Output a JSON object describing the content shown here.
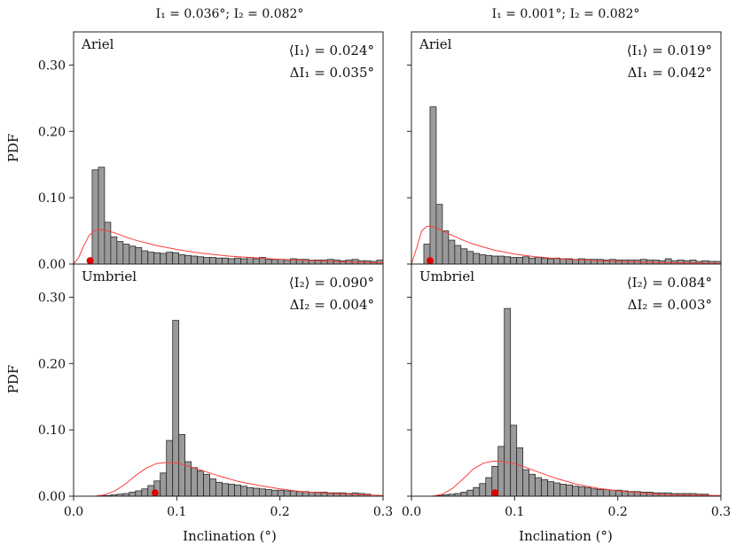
{
  "column_titles": [
    "I₁ = 0.036°; I₂ = 0.082°",
    "I₁ = 0.001°; I₂ = 0.082°"
  ],
  "ylabel": "PDF",
  "xlabel": "Inclination (°)",
  "colors": {
    "bar_fill": "#9a9a9a",
    "bar_edge": "#2a2a2a",
    "fit_curve": "#ff3b3b",
    "marker": "#e00000"
  },
  "chart_data": [
    {
      "type": "bar",
      "panel": "top-left",
      "label": "Ariel",
      "annotation_lines": [
        "⟨I₁⟩ = 0.024°",
        "ΔI₁ = 0.035°"
      ],
      "xlim": [
        0,
        0.3
      ],
      "ylim": [
        0,
        0.35
      ],
      "xticks": [],
      "yticks": [
        "0.00",
        "0.10",
        "0.20",
        "0.30"
      ],
      "bin_start": 0.018,
      "bin_width": 0.006,
      "values": [
        0.142,
        0.146,
        0.063,
        0.041,
        0.034,
        0.03,
        0.027,
        0.025,
        0.02,
        0.018,
        0.017,
        0.016,
        0.018,
        0.017,
        0.014,
        0.013,
        0.012,
        0.011,
        0.01,
        0.01,
        0.009,
        0.009,
        0.008,
        0.009,
        0.008,
        0.01,
        0.008,
        0.01,
        0.007,
        0.007,
        0.007,
        0.006,
        0.008,
        0.007,
        0.007,
        0.006,
        0.006,
        0.006,
        0.007,
        0.006,
        0.005,
        0.006,
        0.007,
        0.005,
        0.005,
        0.004,
        0.006,
        0.005
      ],
      "fit_curve": {
        "x": [
          0,
          0.005,
          0.01,
          0.015,
          0.02,
          0.025,
          0.03,
          0.04,
          0.05,
          0.06,
          0.08,
          0.1,
          0.12,
          0.15,
          0.2,
          0.25,
          0.3
        ],
        "y": [
          0,
          0.01,
          0.028,
          0.043,
          0.05,
          0.052,
          0.051,
          0.047,
          0.041,
          0.036,
          0.028,
          0.022,
          0.017,
          0.012,
          0.007,
          0.004,
          0.002
        ]
      },
      "marker": {
        "x": 0.016,
        "y": 0.005
      }
    },
    {
      "type": "bar",
      "panel": "top-right",
      "label": "Ariel",
      "annotation_lines": [
        "⟨I₁⟩ = 0.019°",
        "ΔI₁ = 0.042°"
      ],
      "xlim": [
        0,
        0.3
      ],
      "ylim": [
        0,
        0.35
      ],
      "xticks": [],
      "yticks": [],
      "bin_start": 0.012,
      "bin_width": 0.006,
      "values": [
        0.03,
        0.237,
        0.09,
        0.05,
        0.036,
        0.028,
        0.023,
        0.019,
        0.016,
        0.014,
        0.013,
        0.012,
        0.012,
        0.011,
        0.01,
        0.01,
        0.011,
        0.009,
        0.01,
        0.009,
        0.008,
        0.009,
        0.008,
        0.008,
        0.007,
        0.008,
        0.007,
        0.007,
        0.007,
        0.006,
        0.007,
        0.006,
        0.006,
        0.006,
        0.006,
        0.007,
        0.006,
        0.006,
        0.005,
        0.008,
        0.005,
        0.006,
        0.005,
        0.006,
        0.004,
        0.005,
        0.004,
        0.004
      ],
      "fit_curve": {
        "x": [
          0,
          0.005,
          0.01,
          0.015,
          0.02,
          0.025,
          0.03,
          0.04,
          0.05,
          0.06,
          0.08,
          0.1,
          0.12,
          0.15,
          0.2,
          0.25,
          0.3
        ],
        "y": [
          0,
          0.024,
          0.05,
          0.057,
          0.057,
          0.054,
          0.05,
          0.043,
          0.036,
          0.03,
          0.021,
          0.015,
          0.011,
          0.007,
          0.004,
          0.002,
          0.001
        ]
      },
      "marker": {
        "x": 0.018,
        "y": 0.005
      }
    },
    {
      "type": "bar",
      "panel": "bottom-left",
      "label": "Umbriel",
      "annotation_lines": [
        "⟨I₂⟩ = 0.090°",
        "ΔI₂ = 0.004°"
      ],
      "xlim": [
        0,
        0.3
      ],
      "ylim": [
        0,
        0.35
      ],
      "xticks": [
        "0.0",
        "0.1",
        "0.2",
        "0.3"
      ],
      "yticks": [
        "0.00",
        "0.10",
        "0.20",
        "0.30"
      ],
      "bin_start": 0.024,
      "bin_width": 0.006,
      "values": [
        0.001,
        0.001,
        0.002,
        0.003,
        0.004,
        0.006,
        0.008,
        0.011,
        0.016,
        0.023,
        0.035,
        0.084,
        0.265,
        0.093,
        0.052,
        0.043,
        0.038,
        0.033,
        0.026,
        0.021,
        0.019,
        0.018,
        0.017,
        0.015,
        0.013,
        0.012,
        0.011,
        0.01,
        0.009,
        0.009,
        0.008,
        0.008,
        0.007,
        0.007,
        0.006,
        0.006,
        0.006,
        0.005,
        0.005,
        0.005,
        0.004,
        0.005,
        0.004,
        0.003
      ],
      "fit_curve": {
        "x": [
          0.02,
          0.03,
          0.04,
          0.05,
          0.06,
          0.07,
          0.08,
          0.09,
          0.1,
          0.11,
          0.12,
          0.14,
          0.16,
          0.18,
          0.2,
          0.22,
          0.25,
          0.3
        ],
        "y": [
          0,
          0.002,
          0.008,
          0.018,
          0.031,
          0.042,
          0.049,
          0.051,
          0.05,
          0.046,
          0.041,
          0.031,
          0.022,
          0.016,
          0.011,
          0.007,
          0.004,
          0.001
        ]
      },
      "marker": {
        "x": 0.079,
        "y": 0.005
      }
    },
    {
      "type": "bar",
      "panel": "bottom-right",
      "label": "Umbriel",
      "annotation_lines": [
        "⟨I₂⟩ = 0.084°",
        "ΔI₂ = 0.003°"
      ],
      "xlim": [
        0,
        0.3
      ],
      "ylim": [
        0,
        0.35
      ],
      "xticks": [
        "0.0",
        "0.1",
        "0.2",
        "0.3"
      ],
      "yticks": [],
      "bin_start": 0.024,
      "bin_width": 0.006,
      "values": [
        0.001,
        0.002,
        0.003,
        0.004,
        0.006,
        0.009,
        0.013,
        0.019,
        0.028,
        0.045,
        0.075,
        0.283,
        0.107,
        0.073,
        0.04,
        0.033,
        0.028,
        0.025,
        0.022,
        0.02,
        0.018,
        0.017,
        0.015,
        0.014,
        0.013,
        0.011,
        0.01,
        0.01,
        0.009,
        0.009,
        0.008,
        0.007,
        0.007,
        0.006,
        0.006,
        0.005,
        0.005,
        0.005,
        0.004,
        0.004,
        0.004,
        0.004,
        0.003,
        0.003
      ],
      "fit_curve": {
        "x": [
          0.02,
          0.03,
          0.04,
          0.05,
          0.06,
          0.07,
          0.08,
          0.09,
          0.1,
          0.11,
          0.12,
          0.14,
          0.16,
          0.18,
          0.2,
          0.22,
          0.25,
          0.3
        ],
        "y": [
          0,
          0.003,
          0.012,
          0.026,
          0.041,
          0.05,
          0.053,
          0.052,
          0.049,
          0.044,
          0.038,
          0.027,
          0.018,
          0.012,
          0.008,
          0.005,
          0.002,
          0.001
        ]
      },
      "marker": {
        "x": 0.081,
        "y": 0.005
      }
    }
  ]
}
